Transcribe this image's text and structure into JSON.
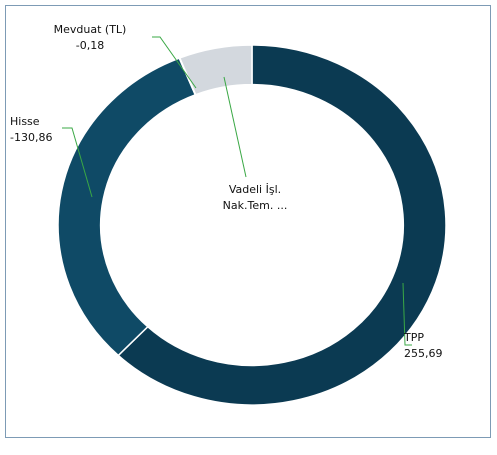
{
  "chart_data": {
    "type": "donut",
    "categories": [
      "TPP",
      "Hisse",
      "Mevduat (TL)",
      "Vadeli İşl. Nak.Tem. ..."
    ],
    "values": [
      255.69,
      -130.86,
      -0.18,
      25
    ],
    "value_labels": [
      "255,69",
      "-130,86",
      "-0,18",
      null
    ],
    "colors": [
      "#0b3a52",
      "#0f4a66",
      "#2b6c8a",
      "#d3d8de"
    ],
    "leader_color": "#3aa845"
  }
}
